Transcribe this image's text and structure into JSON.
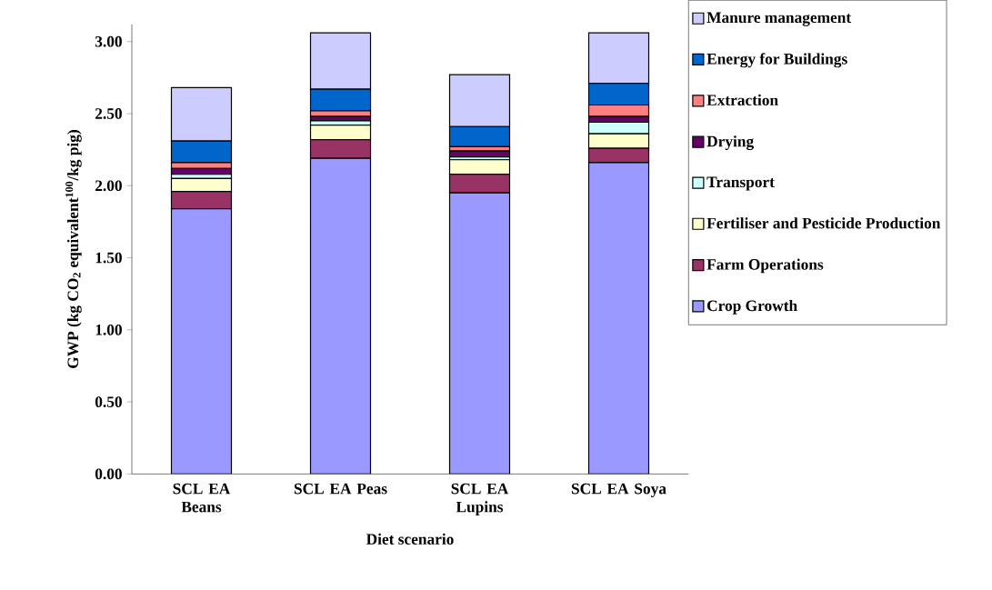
{
  "chart_data": {
    "type": "bar",
    "stacked": true,
    "xlabel": "Diet scenario",
    "ylabel": "GWP (kg CO$_{2}$ equivalent$^{100}$/kg pig)",
    "categories": [
      "SCL EA Beans",
      "SCL EA Peas",
      "SCL EA Lupins",
      "SCL EA Soya"
    ],
    "ylim": [
      0,
      3.12
    ],
    "yticks": [
      {
        "value": 0,
        "label": "0.00"
      },
      {
        "value": 0.5,
        "label": "0.50"
      },
      {
        "value": 1,
        "label": "1.00"
      },
      {
        "value": 1.5,
        "label": "1.50"
      },
      {
        "value": 2,
        "label": "2.00"
      },
      {
        "value": 2.5,
        "label": "2.50"
      },
      {
        "value": 3,
        "label": "3.00"
      }
    ],
    "grid": false,
    "legend": "right",
    "series": [
      {
        "name": "Crop Growth",
        "color": "#9999ff",
        "values": [
          1.84,
          2.19,
          1.95,
          2.16
        ]
      },
      {
        "name": "Farm Operations",
        "color": "#993366",
        "values": [
          0.12,
          0.13,
          0.13,
          0.1
        ]
      },
      {
        "name": "Fertiliser and Pesticide Production",
        "color": "#ffffcc",
        "values": [
          0.09,
          0.1,
          0.1,
          0.1
        ]
      },
      {
        "name": "Transport",
        "color": "#ccffff",
        "values": [
          0.03,
          0.03,
          0.02,
          0.08
        ]
      },
      {
        "name": "Drying",
        "color": "#660066",
        "values": [
          0.04,
          0.03,
          0.04,
          0.04
        ]
      },
      {
        "name": "Extraction",
        "color": "#ff8080",
        "values": [
          0.04,
          0.04,
          0.03,
          0.08
        ]
      },
      {
        "name": "Energy for Buildings",
        "color": "#0066cc",
        "values": [
          0.15,
          0.15,
          0.14,
          0.15
        ]
      },
      {
        "name": "Manure management",
        "color": "#ccccff",
        "values": [
          0.37,
          0.39,
          0.36,
          0.35
        ]
      }
    ]
  }
}
